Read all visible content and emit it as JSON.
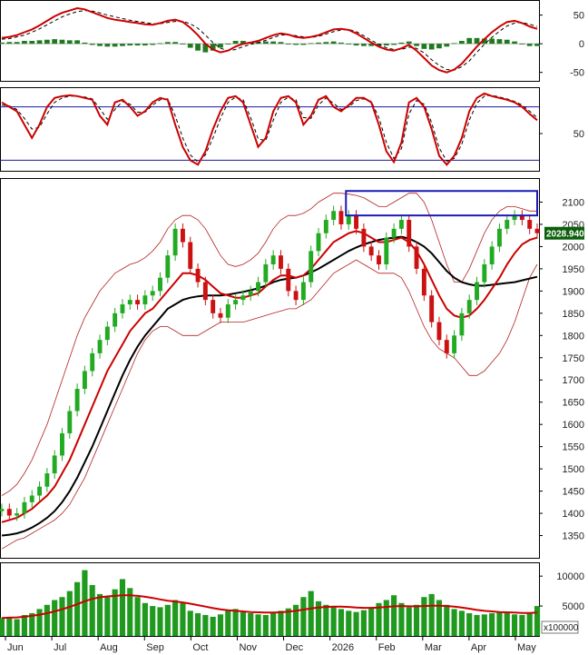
{
  "chart_data": {
    "type": "line",
    "x_ticks": [
      "Jun",
      "Jul",
      "Aug",
      "Sep",
      "Oct",
      "Nov",
      "Dec",
      "2026",
      "Feb",
      "Mar",
      "Apr",
      "May"
    ],
    "price_panel": {
      "type": "candlestick",
      "ylim": [
        1300,
        2150
      ],
      "y_ticks": [
        1350,
        1400,
        1450,
        1500,
        1550,
        1600,
        1650,
        1700,
        1750,
        1800,
        1850,
        1900,
        1950,
        2000,
        2050,
        2100
      ],
      "last_price": "2028.940",
      "close_series": [
        1410,
        1395,
        1400,
        1425,
        1440,
        1460,
        1490,
        1530,
        1580,
        1630,
        1680,
        1720,
        1760,
        1790,
        1820,
        1850,
        1870,
        1880,
        1870,
        1890,
        1900,
        1930,
        1980,
        2040,
        2010,
        1950,
        1920,
        1880,
        1850,
        1840,
        1870,
        1880,
        1890,
        1900,
        1920,
        1960,
        1980,
        1950,
        1900,
        1880,
        1920,
        1990,
        2030,
        2060,
        2080,
        2050,
        2070,
        2040,
        2000,
        1980,
        1960,
        2020,
        2040,
        2060,
        2000,
        1950,
        1890,
        1830,
        1790,
        1760,
        1800,
        1850,
        1880,
        1920,
        1960,
        2000,
        2040,
        2060,
        2070,
        2060,
        2040,
        2030
      ],
      "ma_red": [
        1380,
        1385,
        1390,
        1400,
        1410,
        1425,
        1440,
        1460,
        1490,
        1520,
        1560,
        1600,
        1640,
        1680,
        1720,
        1750,
        1780,
        1810,
        1830,
        1850,
        1860,
        1880,
        1900,
        1920,
        1940,
        1940,
        1935,
        1925,
        1910,
        1895,
        1890,
        1885,
        1885,
        1890,
        1895,
        1910,
        1925,
        1935,
        1935,
        1930,
        1935,
        1950,
        1970,
        1990,
        2010,
        2020,
        2030,
        2035,
        2030,
        2020,
        2010,
        2010,
        2015,
        2020,
        2010,
        1990,
        1960,
        1925,
        1890,
        1860,
        1845,
        1840,
        1845,
        1860,
        1880,
        1905,
        1930,
        1960,
        1985,
        2005,
        2015,
        2020
      ],
      "ma_black": [
        1350,
        1352,
        1355,
        1360,
        1368,
        1378,
        1390,
        1405,
        1425,
        1450,
        1480,
        1515,
        1550,
        1590,
        1630,
        1670,
        1710,
        1745,
        1775,
        1800,
        1820,
        1840,
        1860,
        1870,
        1880,
        1885,
        1888,
        1890,
        1890,
        1890,
        1892,
        1895,
        1898,
        1902,
        1906,
        1912,
        1920,
        1925,
        1928,
        1930,
        1935,
        1942,
        1950,
        1960,
        1970,
        1980,
        1990,
        1998,
        2005,
        2010,
        2015,
        2018,
        2020,
        2022,
        2018,
        2010,
        2000,
        1985,
        1965,
        1945,
        1930,
        1920,
        1915,
        1912,
        1912,
        1914,
        1916,
        1918,
        1920,
        1924,
        1928,
        1932
      ],
      "bb_upper": [
        1440,
        1450,
        1465,
        1490,
        1520,
        1560,
        1600,
        1650,
        1700,
        1750,
        1800,
        1840,
        1870,
        1900,
        1920,
        1940,
        1950,
        1960,
        1965,
        1975,
        1990,
        2010,
        2040,
        2060,
        2070,
        2070,
        2060,
        2040,
        2010,
        1980,
        1960,
        1955,
        1960,
        1970,
        1985,
        2010,
        2040,
        2060,
        2070,
        2070,
        2075,
        2085,
        2100,
        2110,
        2120,
        2120,
        2118,
        2115,
        2110,
        2100,
        2090,
        2090,
        2100,
        2110,
        2120,
        2120,
        2100,
        2060,
        2010,
        1960,
        1920,
        1920,
        1950,
        1990,
        2030,
        2060,
        2080,
        2090,
        2090,
        2085,
        2080,
        2080
      ],
      "bb_lower": [
        1320,
        1330,
        1340,
        1345,
        1355,
        1365,
        1375,
        1385,
        1400,
        1420,
        1450,
        1480,
        1520,
        1560,
        1600,
        1640,
        1680,
        1720,
        1760,
        1790,
        1810,
        1820,
        1820,
        1810,
        1800,
        1800,
        1800,
        1810,
        1820,
        1830,
        1830,
        1830,
        1830,
        1835,
        1840,
        1845,
        1850,
        1855,
        1860,
        1860,
        1870,
        1880,
        1900,
        1920,
        1940,
        1950,
        1960,
        1970,
        1960,
        1950,
        1940,
        1940,
        1940,
        1930,
        1900,
        1860,
        1820,
        1790,
        1770,
        1760,
        1750,
        1730,
        1710,
        1710,
        1720,
        1740,
        1760,
        1790,
        1830,
        1880,
        1930,
        1960
      ],
      "highlight_box": {
        "from_index": 46,
        "to_index": 72,
        "y_low": 2070,
        "y_high": 2125
      }
    },
    "macd_panel": {
      "ylim": [
        -60,
        70
      ],
      "y_ticks": [
        50,
        0,
        -50
      ],
      "macd": [
        10,
        12,
        15,
        20,
        25,
        32,
        40,
        48,
        54,
        58,
        62,
        60,
        55,
        50,
        45,
        42,
        40,
        38,
        36,
        34,
        33,
        36,
        40,
        42,
        38,
        28,
        15,
        0,
        -10,
        -15,
        -12,
        -5,
        0,
        2,
        5,
        10,
        15,
        18,
        16,
        12,
        10,
        12,
        15,
        20,
        25,
        26,
        24,
        18,
        10,
        2,
        -5,
        -10,
        -12,
        -8,
        -2,
        -12,
        -25,
        -38,
        -46,
        -50,
        -45,
        -35,
        -20,
        -5,
        8,
        20,
        30,
        38,
        40,
        36,
        30,
        26
      ],
      "signal": [
        8,
        9,
        12,
        15,
        20,
        26,
        33,
        40,
        47,
        52,
        56,
        58,
        57,
        54,
        50,
        47,
        44,
        41,
        39,
        37,
        35,
        35,
        37,
        39,
        39,
        35,
        27,
        15,
        2,
        -8,
        -12,
        -10,
        -5,
        -1,
        2,
        6,
        11,
        15,
        16,
        14,
        12,
        11,
        13,
        17,
        21,
        24,
        25,
        21,
        14,
        6,
        -1,
        -7,
        -10,
        -10,
        -6,
        -8,
        -16,
        -28,
        -38,
        -45,
        -46,
        -40,
        -30,
        -15,
        -1,
        11,
        22,
        31,
        36,
        37,
        34,
        30
      ],
      "histogram": [
        2,
        3,
        3,
        5,
        5,
        6,
        7,
        8,
        7,
        6,
        6,
        2,
        -2,
        -4,
        -5,
        -5,
        -4,
        -3,
        -3,
        -3,
        -2,
        1,
        3,
        3,
        -1,
        -7,
        -12,
        -15,
        -12,
        -7,
        0,
        5,
        5,
        3,
        3,
        4,
        4,
        3,
        0,
        -2,
        -2,
        1,
        2,
        3,
        4,
        2,
        -1,
        -3,
        -4,
        -4,
        -4,
        -3,
        -2,
        2,
        4,
        -4,
        -9,
        -10,
        -8,
        -5,
        1,
        5,
        10,
        10,
        9,
        9,
        8,
        7,
        4,
        -1,
        -4,
        -4
      ]
    },
    "stoch_panel": {
      "ylim": [
        0,
        100
      ],
      "y_ticks": [
        50
      ],
      "upper_line": 80,
      "lower_line": 20,
      "k": [
        85,
        80,
        75,
        60,
        45,
        60,
        80,
        90,
        92,
        93,
        92,
        90,
        88,
        70,
        60,
        85,
        88,
        80,
        70,
        75,
        85,
        90,
        88,
        60,
        35,
        20,
        15,
        30,
        55,
        75,
        90,
        92,
        85,
        60,
        35,
        45,
        75,
        90,
        92,
        85,
        60,
        70,
        88,
        92,
        80,
        75,
        82,
        90,
        90,
        85,
        60,
        30,
        18,
        40,
        85,
        90,
        80,
        55,
        25,
        15,
        25,
        45,
        75,
        90,
        95,
        92,
        90,
        88,
        85,
        80,
        72,
        65
      ],
      "d": [
        82,
        81,
        77,
        67,
        55,
        57,
        72,
        85,
        90,
        92,
        92,
        91,
        89,
        78,
        66,
        77,
        86,
        83,
        74,
        74,
        82,
        88,
        89,
        70,
        45,
        26,
        18,
        26,
        45,
        67,
        85,
        91,
        88,
        68,
        44,
        42,
        65,
        85,
        91,
        88,
        68,
        67,
        82,
        90,
        84,
        77,
        80,
        87,
        89,
        86,
        68,
        40,
        22,
        33,
        72,
        87,
        83,
        62,
        34,
        19,
        22,
        38,
        65,
        84,
        92,
        93,
        91,
        89,
        86,
        82,
        75,
        68
      ]
    },
    "volume_panel": {
      "ylim": [
        0,
        12000
      ],
      "y_ticks": [
        10000,
        5000
      ],
      "unit_label": "x100000",
      "volume": [
        3000,
        3200,
        2800,
        3500,
        3800,
        4500,
        5200,
        6000,
        6500,
        7500,
        9000,
        11000,
        8500,
        7000,
        6500,
        7800,
        9500,
        8000,
        6500,
        5500,
        5000,
        4800,
        5200,
        6000,
        5500,
        4200,
        3800,
        3500,
        3200,
        3600,
        4200,
        4500,
        4000,
        3800,
        3600,
        3500,
        3800,
        4200,
        4600,
        5200,
        6500,
        7500,
        5800,
        5200,
        4800,
        4500,
        4200,
        4000,
        4300,
        4800,
        5500,
        6000,
        6800,
        5500,
        4800,
        5200,
        6500,
        7000,
        6000,
        5200,
        4500,
        4200,
        3800,
        3500,
        3600,
        3800,
        4000,
        3800,
        3600,
        3500,
        3800,
        5000
      ],
      "volume_ma": [
        3000,
        3050,
        3100,
        3200,
        3350,
        3550,
        3800,
        4100,
        4450,
        4850,
        5300,
        5800,
        6200,
        6450,
        6600,
        6700,
        6800,
        6800,
        6700,
        6550,
        6350,
        6100,
        5900,
        5750,
        5600,
        5400,
        5150,
        4900,
        4650,
        4450,
        4300,
        4200,
        4100,
        4000,
        3950,
        3900,
        3900,
        3950,
        4050,
        4200,
        4400,
        4600,
        4750,
        4850,
        4900,
        4900,
        4850,
        4750,
        4700,
        4700,
        4750,
        4850,
        4950,
        5000,
        4950,
        4950,
        5000,
        5050,
        5050,
        5000,
        4900,
        4750,
        4550,
        4350,
        4200,
        4100,
        4000,
        3950,
        3900,
        3850,
        3850,
        3900
      ]
    }
  }
}
